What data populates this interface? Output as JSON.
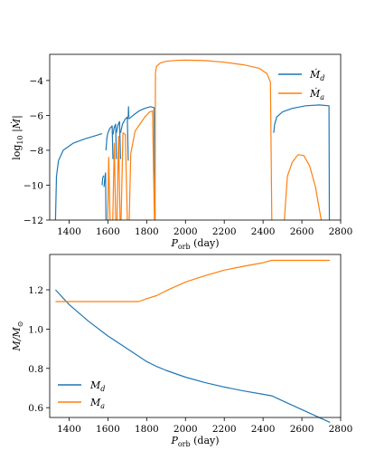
{
  "colors": {
    "donor": "#1f77b4",
    "accretor": "#ff7f0e",
    "axis": "#000000"
  },
  "chart_data": [
    {
      "type": "line",
      "xlabel": "P_orb (day)",
      "ylabel": "log10 |Ṁ|",
      "xlim": [
        1300,
        2800
      ],
      "ylim": [
        -12,
        -2.5
      ],
      "xticks": [
        "1400",
        "1600",
        "1800",
        "2000",
        "2200",
        "2400",
        "2600",
        "2800"
      ],
      "yticks": [
        "-4",
        "-6",
        "-8",
        "-10",
        "-12"
      ],
      "legend_position": "upper-right",
      "series": [
        {
          "name": "Ṁd",
          "color": "#1f77b4",
          "segments": [
            [
              [
                1330,
                -12
              ],
              [
                1335,
                -9.5
              ],
              [
                1345,
                -8.6
              ],
              [
                1370,
                -8.0
              ],
              [
                1420,
                -7.6
              ],
              [
                1480,
                -7.35
              ],
              [
                1540,
                -7.15
              ],
              [
                1570,
                -7.05
              ]
            ],
            [
              [
                1570,
                -10.0
              ],
              [
                1573,
                -9.6
              ],
              [
                1578,
                -9.45
              ]
            ],
            [
              [
                1580,
                -10.1
              ],
              [
                1585,
                -9.5
              ],
              [
                1588,
                -9.3
              ],
              [
                1590,
                -12
              ]
            ],
            [
              [
                1590,
                -8.0
              ],
              [
                1595,
                -7.3
              ],
              [
                1600,
                -7.0
              ],
              [
                1610,
                -6.75
              ],
              [
                1622,
                -6.6
              ],
              [
                1626,
                -8.5
              ]
            ],
            [
              [
                1626,
                -7.1
              ],
              [
                1632,
                -6.7
              ],
              [
                1640,
                -6.5
              ],
              [
                1644,
                -8.5
              ]
            ],
            [
              [
                1644,
                -7.0
              ],
              [
                1652,
                -6.55
              ],
              [
                1660,
                -6.35
              ],
              [
                1665,
                -8.5
              ]
            ],
            [
              [
                1665,
                -7.0
              ],
              [
                1675,
                -6.5
              ],
              [
                1690,
                -6.2
              ],
              [
                1700,
                -6.1
              ],
              [
                1705,
                -8.6
              ]
            ],
            [
              [
                1705,
                -6.2
              ],
              [
                1706,
                -5.5
              ],
              [
                1708,
                -6.1
              ]
            ],
            [
              [
                1708,
                -6.2
              ],
              [
                1730,
                -6.0
              ],
              [
                1760,
                -5.75
              ],
              [
                1790,
                -5.6
              ],
              [
                1820,
                -5.5
              ],
              [
                1838,
                -5.55
              ],
              [
                1843,
                -12
              ]
            ],
            [
              [
                2455,
                -7.0
              ],
              [
                2460,
                -6.5
              ],
              [
                2470,
                -6.1
              ],
              [
                2500,
                -5.8
              ],
              [
                2550,
                -5.6
              ],
              [
                2620,
                -5.45
              ],
              [
                2690,
                -5.4
              ],
              [
                2740,
                -5.45
              ],
              [
                2742,
                -12
              ]
            ]
          ]
        },
        {
          "name": "Ṁa",
          "color": "#ff7f0e",
          "segments": [
            [
              [
                1599,
                -12
              ],
              [
                1604,
                -8.4
              ],
              [
                1611,
                -12
              ]
            ],
            [
              [
                1625,
                -12
              ],
              [
                1633,
                -7.6
              ],
              [
                1640,
                -12
              ]
            ],
            [
              [
                1647,
                -12
              ],
              [
                1655,
                -7.2
              ],
              [
                1663,
                -12
              ]
            ],
            [
              [
                1668,
                -12
              ],
              [
                1678,
                -7.0
              ],
              [
                1690,
                -7.1
              ],
              [
                1700,
                -12
              ]
            ],
            [
              [
                1710,
                -12
              ],
              [
                1718,
                -8.2
              ],
              [
                1740,
                -6.9
              ],
              [
                1765,
                -6.5
              ],
              [
                1790,
                -6.1
              ],
              [
                1815,
                -5.8
              ],
              [
                1830,
                -5.75
              ],
              [
                1840,
                -12
              ]
            ],
            [
              [
                1843,
                -12
              ],
              [
                1845,
                -3.6
              ],
              [
                1850,
                -3.2
              ],
              [
                1870,
                -3.0
              ],
              [
                1900,
                -2.9
              ],
              [
                1950,
                -2.85
              ],
              [
                2000,
                -2.83
              ],
              [
                2100,
                -2.86
              ],
              [
                2200,
                -2.95
              ],
              [
                2300,
                -3.1
              ],
              [
                2380,
                -3.3
              ],
              [
                2420,
                -3.6
              ],
              [
                2438,
                -4.1
              ],
              [
                2445,
                -12
              ]
            ],
            [
              [
                2510,
                -12
              ],
              [
                2525,
                -9.5
              ],
              [
                2550,
                -8.7
              ],
              [
                2580,
                -8.25
              ],
              [
                2610,
                -8.3
              ],
              [
                2640,
                -8.9
              ],
              [
                2670,
                -10.1
              ],
              [
                2700,
                -12
              ]
            ]
          ]
        }
      ]
    },
    {
      "type": "line",
      "xlabel": "P_orb (day)",
      "ylabel": "M/M⊙",
      "xlim": [
        1300,
        2800
      ],
      "ylim": [
        0.55,
        1.38
      ],
      "xticks": [
        "1400",
        "1600",
        "1800",
        "2000",
        "2200",
        "2400",
        "2600",
        "2800"
      ],
      "yticks": [
        "1.2",
        "1.0",
        "0.8",
        "0.6"
      ],
      "legend_position": "lower-left",
      "series": [
        {
          "name": "Md",
          "color": "#1f77b4",
          "points": [
            [
              1330,
              1.2
            ],
            [
              1400,
              1.125
            ],
            [
              1500,
              1.04
            ],
            [
              1600,
              0.965
            ],
            [
              1700,
              0.9
            ],
            [
              1800,
              0.835
            ],
            [
              1850,
              0.81
            ],
            [
              1900,
              0.79
            ],
            [
              2000,
              0.755
            ],
            [
              2100,
              0.728
            ],
            [
              2200,
              0.705
            ],
            [
              2300,
              0.685
            ],
            [
              2400,
              0.668
            ],
            [
              2445,
              0.66
            ],
            [
              2500,
              0.635
            ],
            [
              2600,
              0.59
            ],
            [
              2700,
              0.545
            ],
            [
              2745,
              0.525
            ]
          ]
        },
        {
          "name": "Ma",
          "color": "#ff7f0e",
          "points": [
            [
              1330,
              1.14
            ],
            [
              1500,
              1.14
            ],
            [
              1600,
              1.14
            ],
            [
              1700,
              1.14
            ],
            [
              1760,
              1.14
            ],
            [
              1800,
              1.155
            ],
            [
              1850,
              1.17
            ],
            [
              1900,
              1.195
            ],
            [
              2000,
              1.24
            ],
            [
              2100,
              1.272
            ],
            [
              2200,
              1.3
            ],
            [
              2300,
              1.32
            ],
            [
              2400,
              1.338
            ],
            [
              2445,
              1.35
            ],
            [
              2500,
              1.35
            ],
            [
              2600,
              1.35
            ],
            [
              2745,
              1.35
            ]
          ]
        }
      ]
    }
  ],
  "labels": {
    "top_ylabel_prefix": "log",
    "top_ylabel_sub": "10",
    "top_ylabel_suffix": "|Ṁ|",
    "xlabel_main": "P",
    "xlabel_sub": "orb",
    "xlabel_unit": "(day)",
    "bottom_ylabel_main": "M/M",
    "bottom_ylabel_sub": "⊙",
    "legend_top": [
      {
        "main": "Ṁ",
        "sub": "d"
      },
      {
        "main": "Ṁ",
        "sub": "a"
      }
    ],
    "legend_bottom": [
      {
        "main": "M",
        "sub": "d"
      },
      {
        "main": "M",
        "sub": "a"
      }
    ]
  }
}
